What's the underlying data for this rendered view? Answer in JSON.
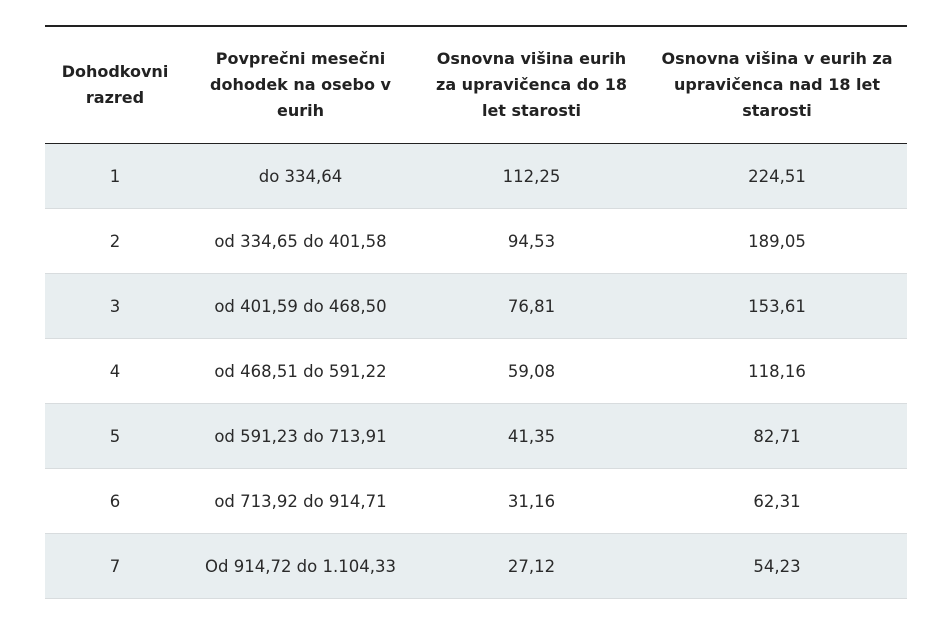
{
  "table": {
    "headers": [
      "Dohodkovni razred",
      "Povprečni mesečni dohodek na osebo v eurih",
      "Osnovna višina eurih za upravičenca do 18 let starosti",
      "Osnovna višina v eurih za upravičenca nad 18 let starosti"
    ],
    "rows": [
      [
        "1",
        "do 334,64",
        "112,25",
        "224,51"
      ],
      [
        "2",
        "od 334,65 do 401,58",
        "94,53",
        "189,05"
      ],
      [
        "3",
        "od 401,59 do 468,50",
        "76,81",
        "153,61"
      ],
      [
        "4",
        "od 468,51 do 591,22",
        "59,08",
        "118,16"
      ],
      [
        "5",
        "od 591,23 do 713,91",
        "41,35",
        "82,71"
      ],
      [
        "6",
        "od 713,92 do 914,71",
        "31,16",
        "62,31"
      ],
      [
        "7",
        "Od 914,72 do 1.104,33",
        "27,12",
        "54,23"
      ]
    ]
  }
}
